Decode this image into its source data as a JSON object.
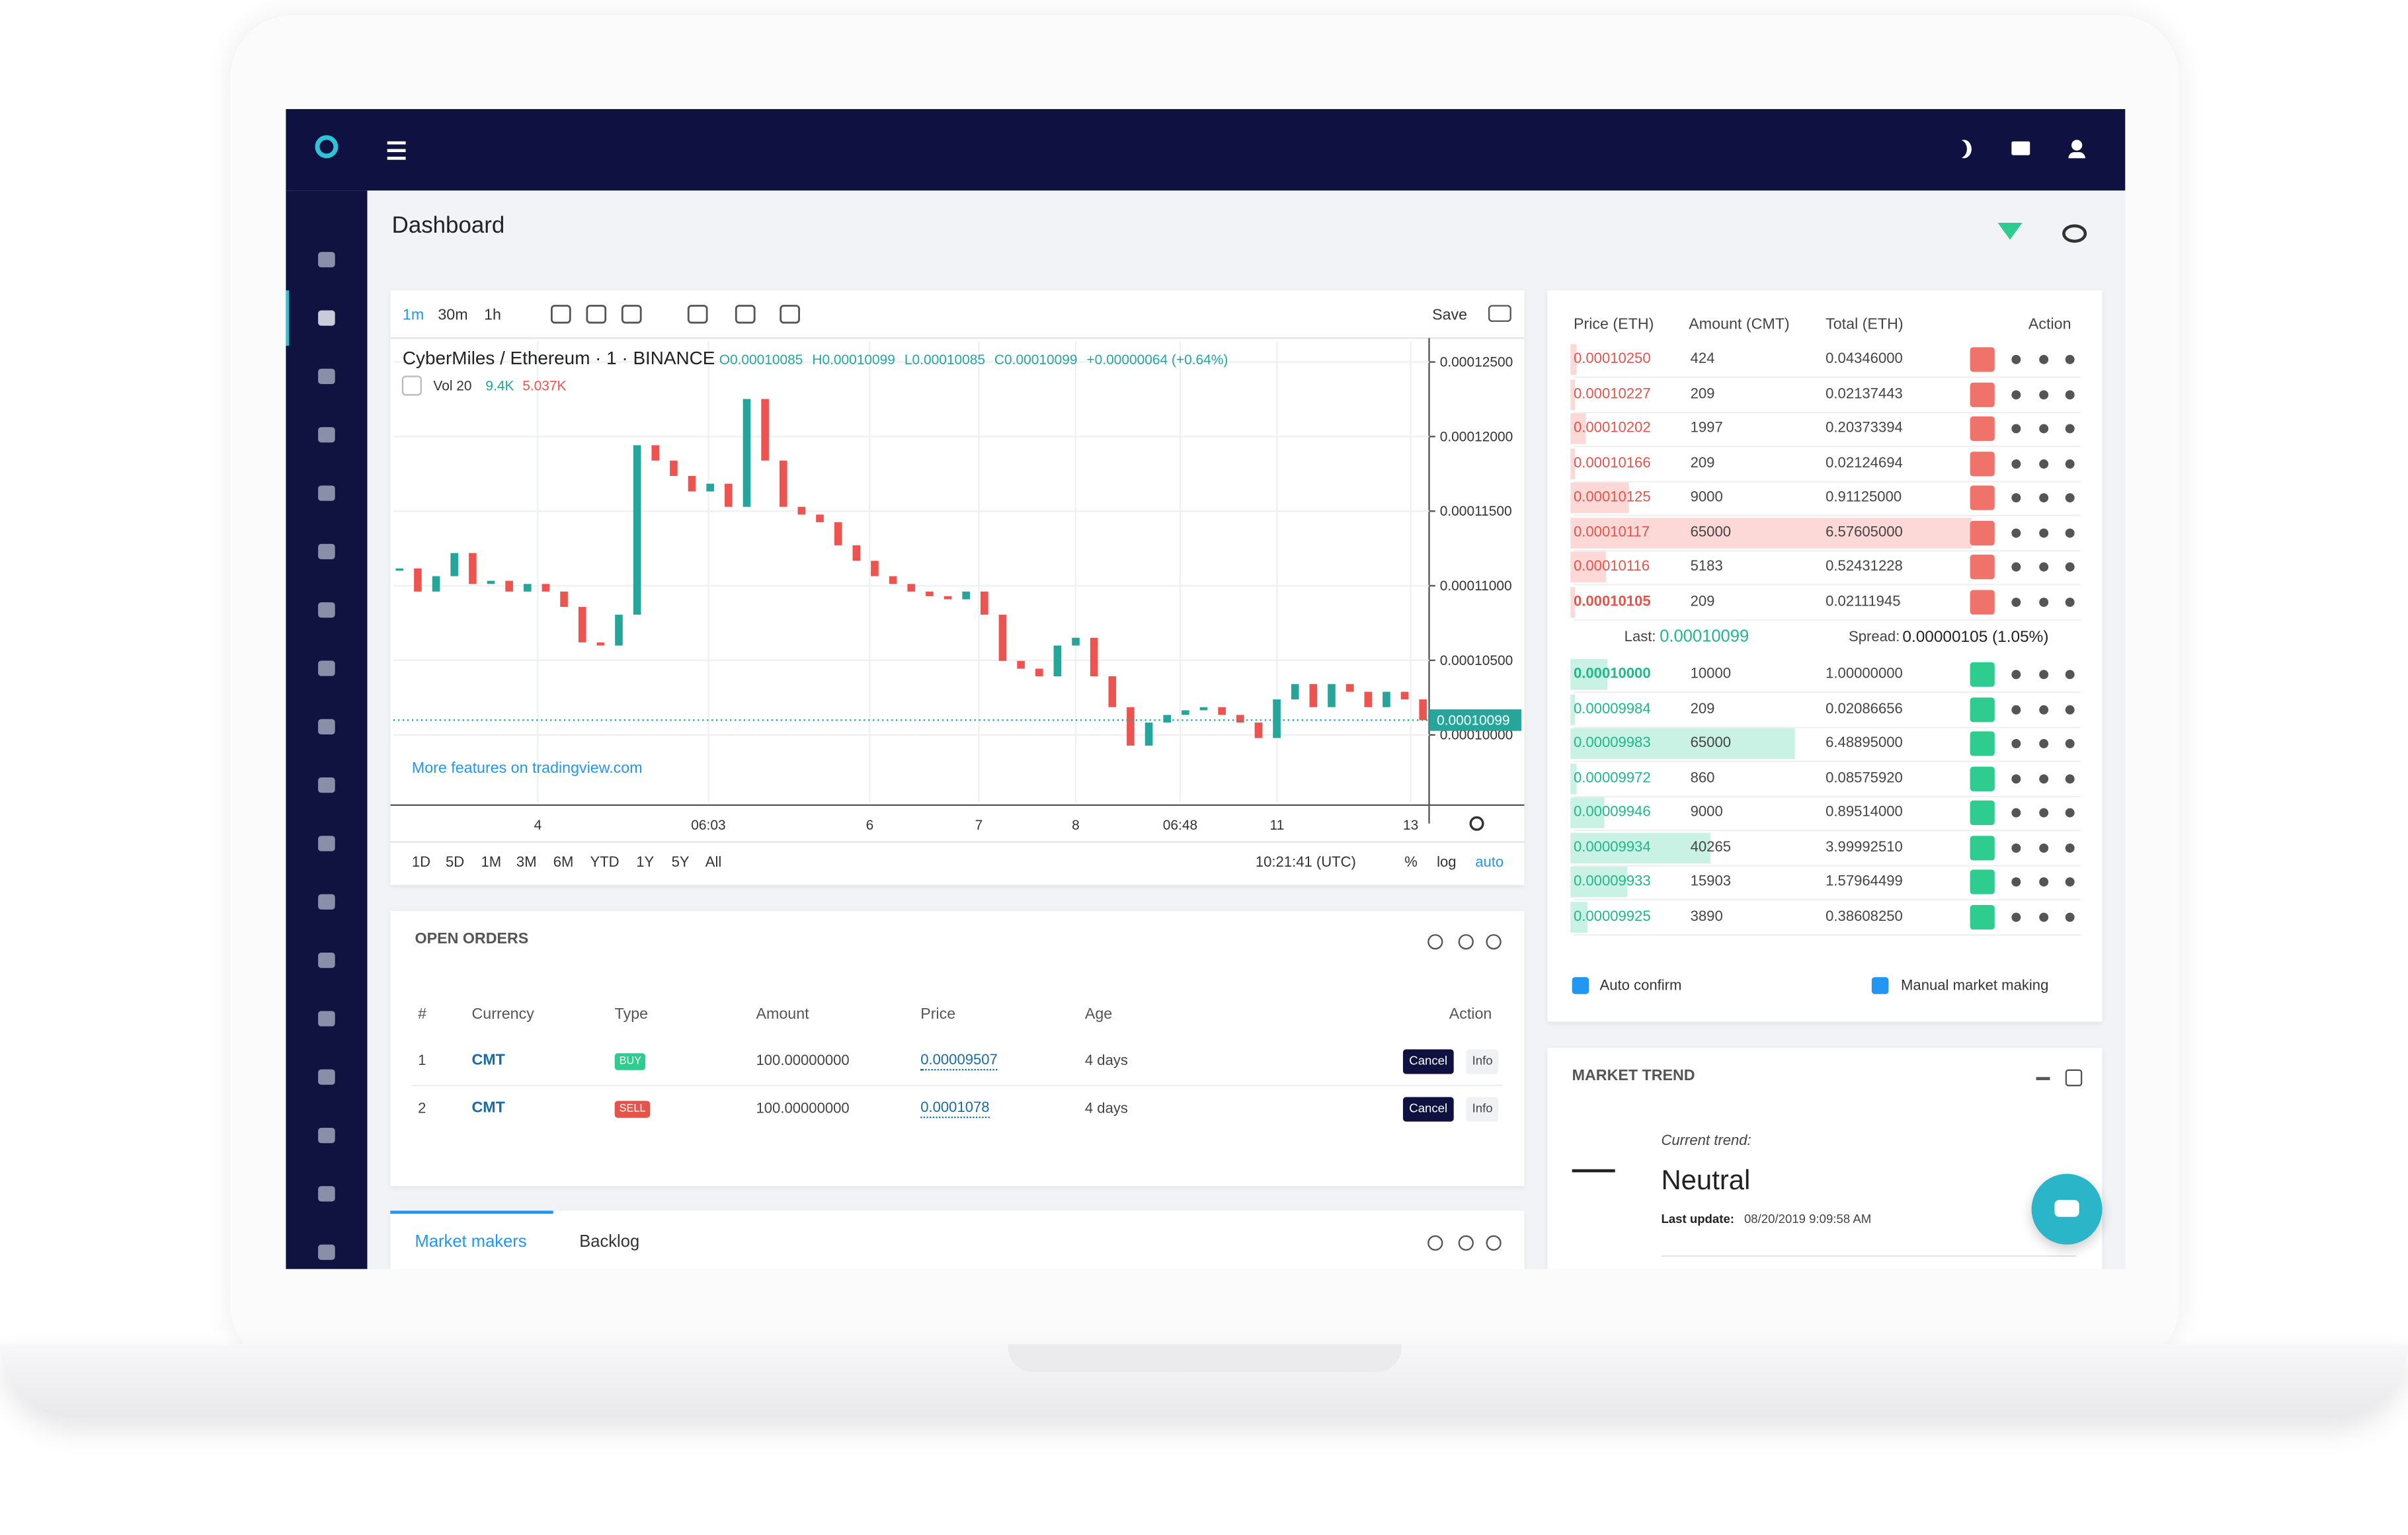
{
  "header": {
    "title": "Dashboard"
  },
  "chart": {
    "type": "candlestick",
    "toolbar": [
      "1m",
      "30m",
      "1h"
    ],
    "save": "Save",
    "symbol": "CyberMiles / Ethereum · 1 · BINANCE",
    "ohlc": [
      "O0.00010085",
      "H0.00010099",
      "L0.00010085",
      "C0.00010099",
      "+0.00000064 (+0.64%)"
    ],
    "volume": {
      "label": "Vol 20",
      "v1": "9.4K",
      "v2": "5.037K"
    },
    "link": "More features on tradingview.com",
    "ylim": [
      9.55e-05,
      0.0001264
    ],
    "yticks": [
      {
        "value": 0.000125,
        "label": "0.00012500"
      },
      {
        "value": 0.00012,
        "label": "0.00012000"
      },
      {
        "value": 0.000115,
        "label": "0.00011500"
      },
      {
        "value": 0.00011,
        "label": "0.00011000"
      },
      {
        "value": 0.000105,
        "label": "0.00010500"
      },
      {
        "value": 0.0001,
        "label": "0.00010000"
      }
    ],
    "last_price": {
      "value": 0.00010099,
      "label": "0.00010099"
    },
    "xlabels": [
      "4",
      "06:03",
      "6",
      "7",
      "8",
      "06:48",
      "11",
      "13"
    ],
    "ranges": [
      "1D",
      "5D",
      "1M",
      "3M",
      "6M",
      "YTD",
      "1Y",
      "5Y",
      "All"
    ],
    "time": "10:21:41 (UTC)",
    "scale_opts": [
      "%",
      "log",
      "auto"
    ],
    "prices": [
      0.00011116,
      0.00010961,
      0.00011064,
      0.00011219,
      0.00011012,
      0.00011033,
      0.00010961,
      0.00011012,
      0.00010961,
      0.00010858,
      0.0001062,
      0.00010599,
      0.00010806,
      0.00011942,
      0.00011839,
      0.00011736,
      0.00011632,
      0.00011684,
      0.00011529,
      0.00012252,
      0.00011839,
      0.00011529,
      0.00011477,
      0.00011426,
      0.00011271,
      0.00011167,
      0.00011064,
      0.00011012,
      0.00010961,
      0.0001093,
      0.00010909,
      0.00010961,
      0.00010806,
      0.00010496,
      0.00010444,
      0.00010393,
      0.00010599,
      0.00010651,
      0.00010393,
      0.00010186,
      9.928e-05,
      0.00010083,
      0.00010134,
      0.00010165,
      0.00010186,
      0.00010134,
      0.00010083,
      9.979e-05,
      0.00010238,
      0.00010341,
      0.00010186,
      0.00010341,
      0.00010289,
      0.00010186,
      0.00010289,
      0.00010238,
      0.00010099
    ]
  },
  "orderbook": {
    "headers": [
      "Price (ETH)",
      "Amount (CMT)",
      "Total (ETH)",
      "Action"
    ],
    "asks": [
      {
        "price": "0.00010250",
        "amount": 424,
        "total": "0.04346000"
      },
      {
        "price": "0.00010227",
        "amount": 209,
        "total": "0.02137443"
      },
      {
        "price": "0.00010202",
        "amount": 1997,
        "total": "0.20373394"
      },
      {
        "price": "0.00010166",
        "amount": 209,
        "total": "0.02124694"
      },
      {
        "price": "0.00010125",
        "amount": 9000,
        "total": "0.91125000"
      },
      {
        "price": "0.00010117",
        "amount": 65000,
        "total": "6.57605000"
      },
      {
        "price": "0.00010116",
        "amount": 5183,
        "total": "0.52431228"
      },
      {
        "price": "0.00010105",
        "amount": 209,
        "total": "0.02111945"
      }
    ],
    "last_label": "Last:",
    "last": "0.00010099",
    "spread_label": "Spread:",
    "spread": "0.00000105 (1.05%)",
    "bids": [
      {
        "price": "0.00010000",
        "amount": 10000,
        "total": "1.00000000"
      },
      {
        "price": "0.00009984",
        "amount": 209,
        "total": "0.02086656"
      },
      {
        "price": "0.00009983",
        "amount": 65000,
        "total": "6.48895000"
      },
      {
        "price": "0.00009972",
        "amount": 860,
        "total": "0.08575920"
      },
      {
        "price": "0.00009946",
        "amount": 9000,
        "total": "0.89514000"
      },
      {
        "price": "0.00009934",
        "amount": 40265,
        "total": "3.99992510"
      },
      {
        "price": "0.00009933",
        "amount": 15903,
        "total": "1.57964499"
      },
      {
        "price": "0.00009925",
        "amount": 3890,
        "total": "0.38608250"
      }
    ],
    "auto_confirm": "Auto confirm",
    "manual": "Manual market making"
  },
  "open_orders": {
    "title": "OPEN ORDERS",
    "headers": [
      "#",
      "Currency",
      "Type",
      "Amount",
      "Price",
      "Age",
      "Action"
    ],
    "rows": [
      [
        "1",
        "CMT",
        "BUY",
        "100.00000000",
        "0.00009507",
        "4 days"
      ],
      [
        "2",
        "CMT",
        "SELL",
        "100.00000000",
        "0.0001078",
        "4 days"
      ]
    ],
    "cancel": "Cancel",
    "info": "Info"
  },
  "tabs": [
    "Market makers",
    "Backlog"
  ],
  "market_trend": {
    "title": "MARKET TREND",
    "label": "Current trend:",
    "trend": "Neutral",
    "update_label": "Last update:",
    "update": "08/20/2019 9:09:58 AM"
  }
}
